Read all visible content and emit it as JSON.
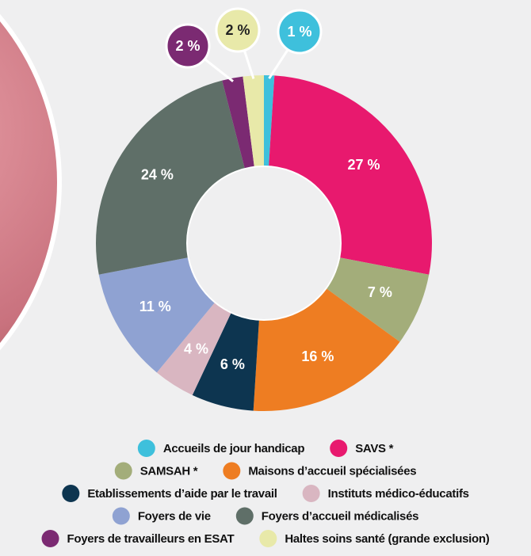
{
  "chart_data": {
    "type": "donut",
    "categories": [
      "Accueils de jour handicap",
      "SAVS *",
      "SAMSAH *",
      "Maisons d’accueil spécialisées",
      "Etablissements d’aide par le travail",
      "Instituts médico-éducatifs",
      "Foyers de vie",
      "Foyers d’accueil médicalisés",
      "Foyers de travailleurs en ESAT",
      "Haltes soins santé (grande exclusion)"
    ],
    "values": [
      1,
      27,
      7,
      16,
      6,
      4,
      11,
      24,
      2,
      2
    ],
    "value_labels": [
      "1 %",
      "27 %",
      "7 %",
      "16 %",
      "6 %",
      "4 %",
      "11 %",
      "24 %",
      "2 %",
      "2 %"
    ],
    "colors": [
      "#3ec0dc",
      "#e8196e",
      "#a3ad7a",
      "#ee7d22",
      "#0d3550",
      "#d9b6c1",
      "#8fa2d2",
      "#5f6f68",
      "#7b2a72",
      "#e8e9a9"
    ]
  }
}
